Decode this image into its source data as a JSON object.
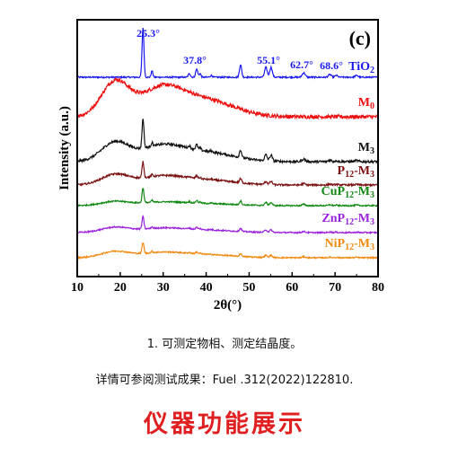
{
  "chart_data": {
    "type": "line",
    "panel_label": "(c)",
    "xlabel": "2θ(°)",
    "ylabel": "Intensity (a.u.)",
    "xlim": [
      10,
      80
    ],
    "xticks": [
      "10",
      "20",
      "30",
      "40",
      "50",
      "60",
      "70",
      "80"
    ],
    "grid": false,
    "peak_labels": [
      "25.3°",
      "37.8°",
      "55.1°",
      "62.7°",
      "68.6°"
    ],
    "series": [
      {
        "name": "TiO2",
        "color": "#1a1af0",
        "label_parts": [
          [
            "TiO",
            ""
          ],
          [
            "2",
            "sub"
          ]
        ]
      },
      {
        "name": "M0",
        "color": "#ee1010",
        "label_parts": [
          [
            "M",
            ""
          ],
          [
            "0",
            "sub"
          ]
        ]
      },
      {
        "name": "M3",
        "color": "#111111",
        "label_parts": [
          [
            "M",
            ""
          ],
          [
            "3",
            "sub"
          ]
        ]
      },
      {
        "name": "P12-M3",
        "color": "#7a1010",
        "label_parts": [
          [
            "P",
            ""
          ],
          [
            "12",
            "sub"
          ],
          [
            "-M",
            ""
          ],
          [
            "3",
            "sub"
          ]
        ]
      },
      {
        "name": "CuP12-M3",
        "color": "#118811",
        "label_parts": [
          [
            "CuP",
            ""
          ],
          [
            "12",
            "sub"
          ],
          [
            "-M",
            ""
          ],
          [
            "3",
            "sub"
          ]
        ]
      },
      {
        "name": "ZnP12-M3",
        "color": "#9a22dd",
        "label_parts": [
          [
            "ZnP",
            ""
          ],
          [
            "12",
            "sub"
          ],
          [
            "-M",
            ""
          ],
          [
            "3",
            "sub"
          ]
        ]
      },
      {
        "name": "NiP12-M3",
        "color": "#f08a10",
        "label_parts": [
          [
            "NiP",
            ""
          ],
          [
            "12",
            "sub"
          ],
          [
            "-M",
            ""
          ],
          [
            "3",
            "sub"
          ]
        ]
      }
    ]
  },
  "captions": {
    "line1": "1. 可测定物相、测定结晶度。",
    "line2": "详情可参阅测试成果：Fuel .312(2022)122810.",
    "banner": "仪器功能展示"
  }
}
